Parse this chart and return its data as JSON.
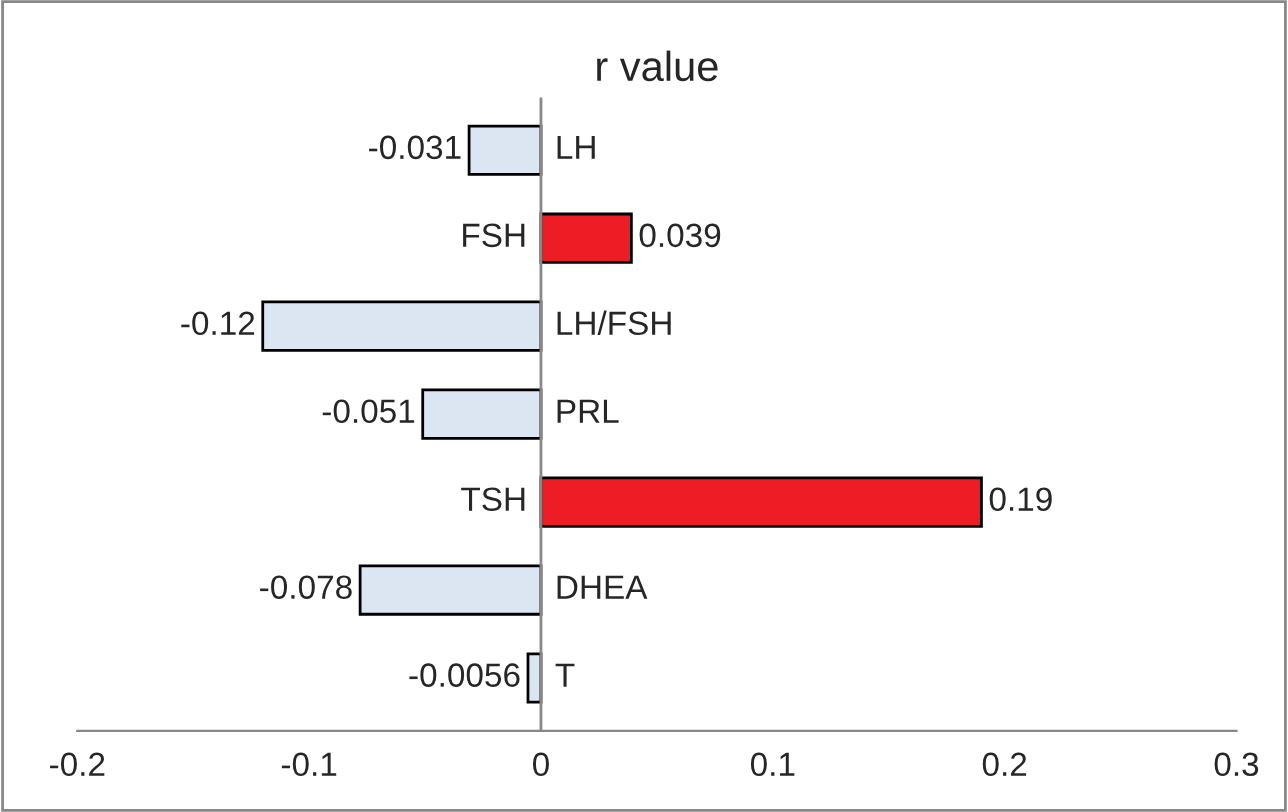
{
  "chart_data": {
    "type": "bar",
    "orientation": "horizontal",
    "title": "r value",
    "categories": [
      "LH",
      "FSH",
      "LH/FSH",
      "PRL",
      "TSH",
      "DHEA",
      "T"
    ],
    "values": [
      -0.031,
      0.039,
      -0.12,
      -0.051,
      0.19,
      -0.078,
      -0.0056
    ],
    "colors": [
      "#dce6f2",
      "#ee1c25",
      "#dce6f2",
      "#dce6f2",
      "#ee1c25",
      "#dce6f2",
      "#dce6f2"
    ],
    "xlim": [
      -0.2,
      0.3
    ],
    "xticks": [
      -0.2,
      -0.1,
      0,
      0.1,
      0.2,
      0.3
    ],
    "data_labels": true,
    "grid": false,
    "legend": false
  }
}
